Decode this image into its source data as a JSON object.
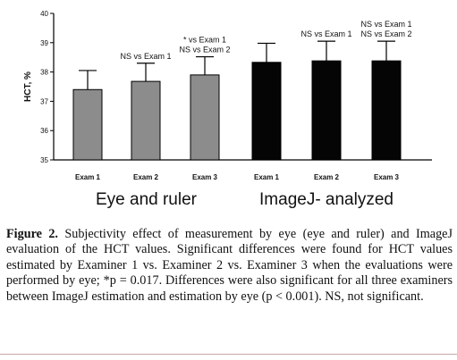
{
  "chart_data": {
    "type": "bar",
    "ylabel": "HCT, %",
    "ylim": [
      35,
      40
    ],
    "yticks": [
      "35",
      "36",
      "37",
      "38",
      "39",
      "40"
    ],
    "categories": [
      "Exam 1",
      "Exam 2",
      "Exam 3",
      "Exam 1",
      "Exam 2",
      "Exam 3"
    ],
    "values": [
      37.4,
      37.68,
      37.9,
      38.33,
      38.38,
      38.38
    ],
    "error_upper": [
      38.05,
      38.3,
      38.52,
      38.98,
      39.05,
      39.05
    ],
    "bar_colors": [
      "#8c8c8c",
      "#8c8c8c",
      "#8c8c8c",
      "#050505",
      "#050505",
      "#050505"
    ],
    "annotations": [
      {
        "bar": 1,
        "lines": [
          "NS vs Exam 1"
        ]
      },
      {
        "bar": 2,
        "lines": [
          "* vs Exam 1",
          "NS vs Exam 2"
        ]
      },
      {
        "bar": 4,
        "lines": [
          "NS vs Exam 1"
        ]
      },
      {
        "bar": 5,
        "lines": [
          "NS vs Exam 1",
          "NS vs Exam 2"
        ]
      }
    ],
    "groups": [
      {
        "label": "Eye  and ruler",
        "bars": [
          0,
          1,
          2
        ]
      },
      {
        "label": "ImageJ- analyzed",
        "bars": [
          3,
          4,
          5
        ]
      }
    ],
    "grid": false
  },
  "caption": {
    "label": "Figure 2.",
    "text": " Subjectivity effect of measurement by eye (eye and ruler) and ImageJ evaluation of the HCT values. Significant differences were found for HCT values estimated by Examiner 1 vs. Examiner 2 vs. Examiner 3 when the evaluations were performed by eye; *p = 0.017. Differences were also significant for all three examiners between ImageJ estimation and estimation by eye (p < 0.001). NS, not significant."
  }
}
